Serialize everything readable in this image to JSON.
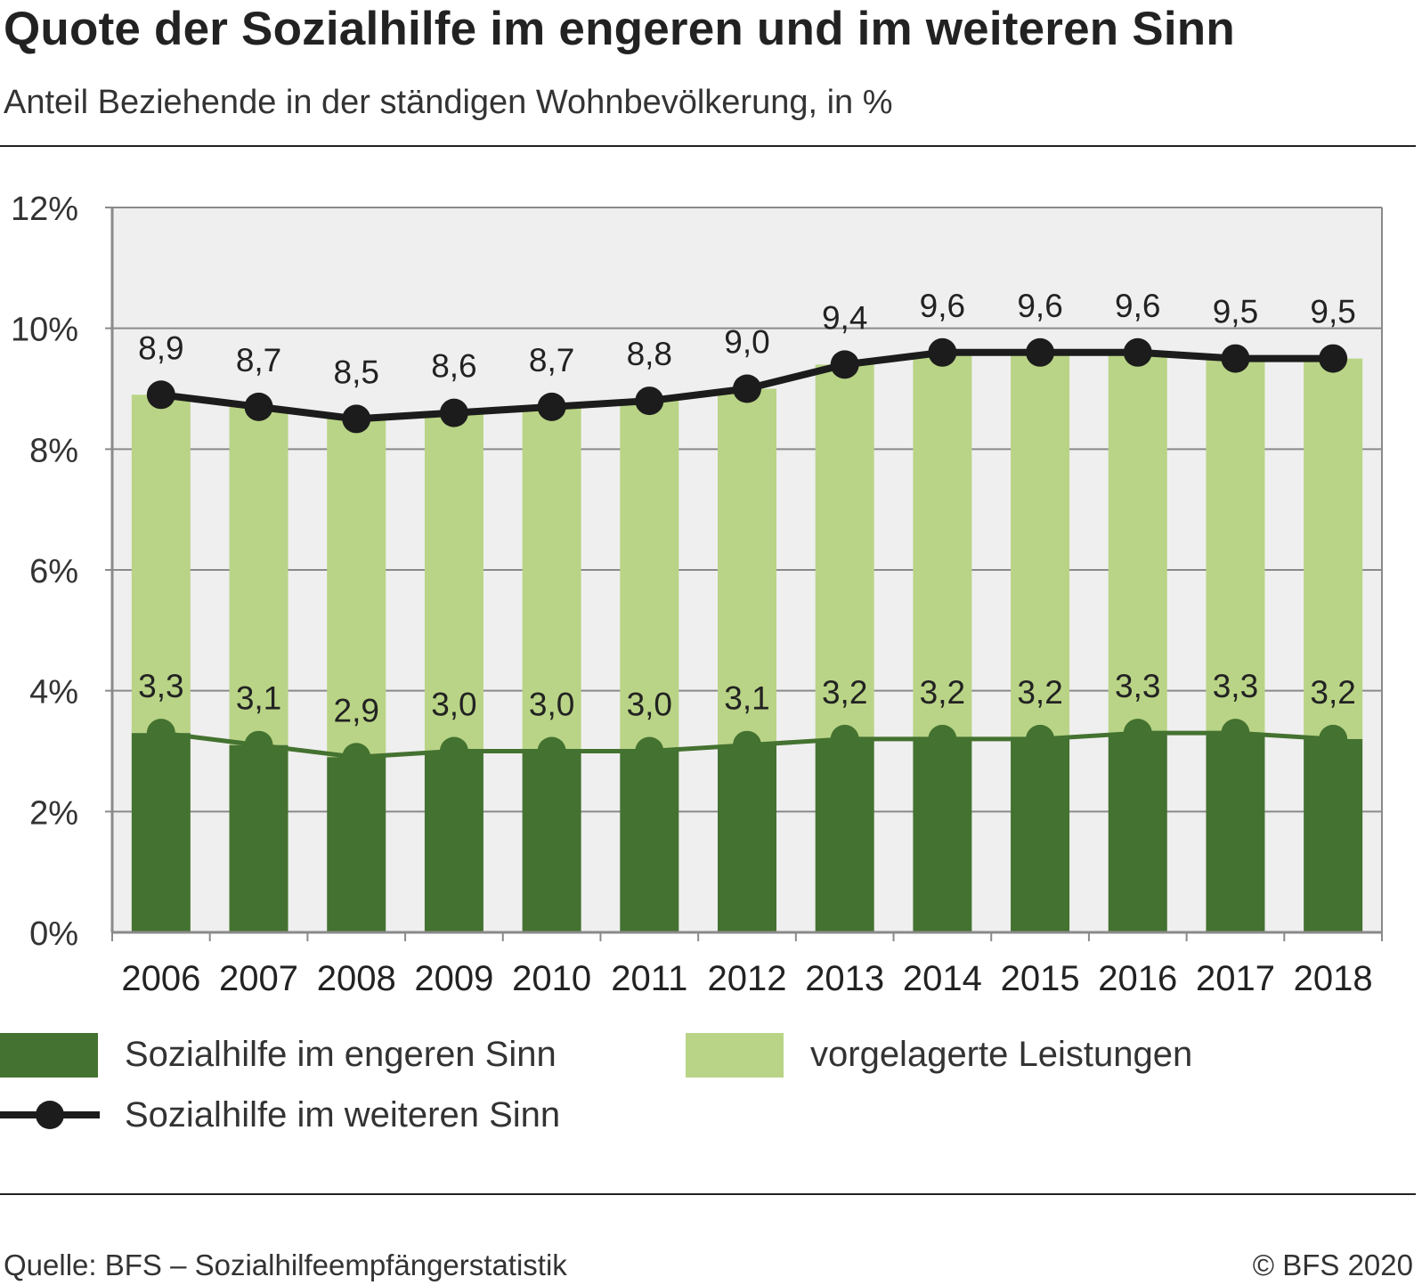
{
  "title": "Quote der Sozialhilfe im engeren und im weiteren Sinn",
  "subtitle": "Anteil Beziehende in der ständigen Wohnbevölkerung, in %",
  "chart_data": {
    "type": "bar",
    "stacked": true,
    "categories": [
      "2006",
      "2007",
      "2008",
      "2009",
      "2010",
      "2011",
      "2012",
      "2013",
      "2014",
      "2015",
      "2016",
      "2017",
      "2018"
    ],
    "ylim": [
      0,
      12
    ],
    "yticks": [
      0,
      2,
      4,
      6,
      8,
      10,
      12
    ],
    "ytick_labels": [
      "0%",
      "2%",
      "4%",
      "6%",
      "8%",
      "10%",
      "12%"
    ],
    "grid": true,
    "series": [
      {
        "name": "Sozialhilfe im engeren Sinn",
        "kind": "bar",
        "color": "#447230",
        "values": [
          3.3,
          3.1,
          2.9,
          3.0,
          3.0,
          3.0,
          3.1,
          3.2,
          3.2,
          3.2,
          3.3,
          3.3,
          3.2
        ],
        "labels": [
          "3,3",
          "3,1",
          "2,9",
          "3,0",
          "3,0",
          "3,0",
          "3,1",
          "3,2",
          "3,2",
          "3,2",
          "3,3",
          "3,3",
          "3,2"
        ]
      },
      {
        "name": "vorgelagerte Leistungen",
        "kind": "bar",
        "color": "#b9d486",
        "values": [
          5.6,
          5.6,
          5.6,
          5.6,
          5.7,
          5.8,
          5.9,
          6.2,
          6.4,
          6.4,
          6.3,
          6.2,
          6.3
        ]
      },
      {
        "name": "Sozialhilfe im weiteren Sinn",
        "kind": "line",
        "color": "#1c1c1c",
        "values": [
          8.9,
          8.7,
          8.5,
          8.6,
          8.7,
          8.8,
          9.0,
          9.4,
          9.6,
          9.6,
          9.6,
          9.5,
          9.5
        ],
        "labels": [
          "8,9",
          "8,7",
          "8,5",
          "8,6",
          "8,7",
          "8,8",
          "9,0",
          "9,4",
          "9,6",
          "9,6",
          "9,6",
          "9,5",
          "9,5"
        ]
      }
    ],
    "legend_position": "bottom"
  },
  "colors": {
    "plot_bg": "#efefef",
    "grid": "#8a8a8a",
    "inner_line": "#447230"
  },
  "legend": {
    "narrow": "Sozialhilfe im engeren Sinn",
    "upstream": "vorgelagerte Leistungen",
    "broad": "Sozialhilfe im weiteren Sinn"
  },
  "footer": {
    "source": "Quelle: BFS – Sozialhilfeempfängerstatistik",
    "copyright": "© BFS 2020"
  }
}
